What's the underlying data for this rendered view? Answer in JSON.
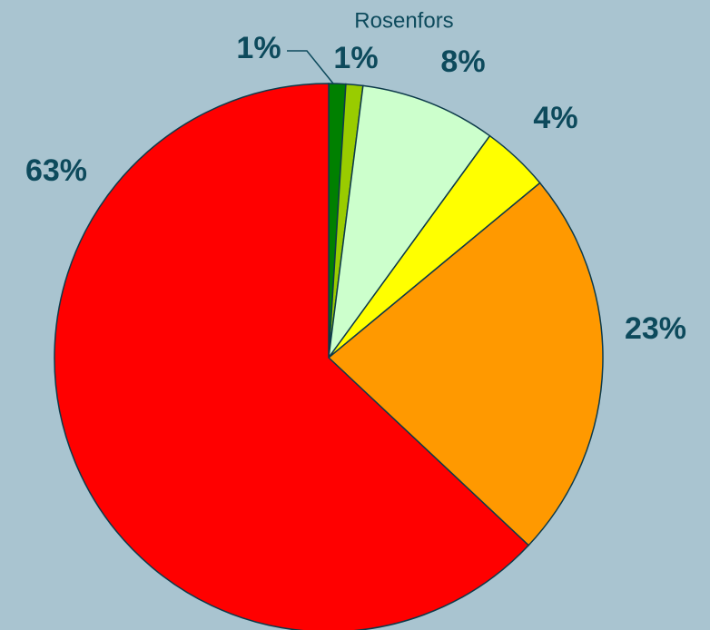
{
  "chart_data": {
    "type": "pie",
    "values": [
      1,
      1,
      8,
      4,
      23,
      63
    ],
    "value_labels": [
      "1%",
      "1%",
      "8%",
      "4%",
      "23%",
      "63%"
    ],
    "colors": [
      "#008000",
      "#99cc00",
      "#ccffcc",
      "#ffff00",
      "#ff9900",
      "#ff0000"
    ],
    "annotation": "Rosenfors"
  }
}
